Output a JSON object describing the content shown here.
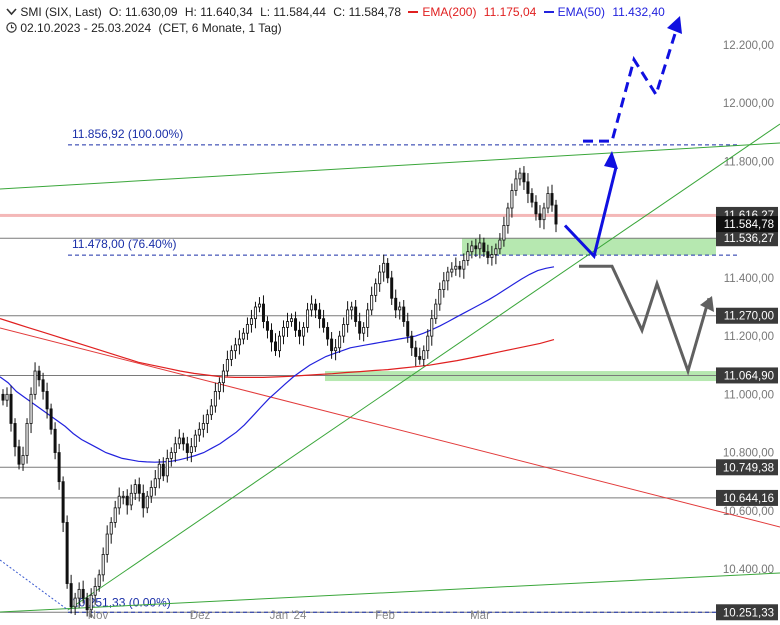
{
  "header": {
    "symbol": "SMI (SIX, Last)",
    "open": "O: 11.630,09",
    "high": "H: 11.640,34",
    "low": "L: 11.584,44",
    "close": "C: 11.584,78",
    "ema200_label": "EMA(200)",
    "ema200_value": "11.175,04",
    "ema50_label": "EMA(50)",
    "ema50_value": "11.432,40",
    "range": "02.10.2023 - 25.03.2024",
    "info": "(CET, 6 Monate, 1 Tag)"
  },
  "colors": {
    "ema200": "#e02020",
    "ema50": "#2222dd",
    "fib": "#1a2fa8",
    "trend_green": "#3aa63a",
    "zone": "#b6e8b0",
    "forecast_up": "#1010e0",
    "forecast_down": "#606060",
    "candle": "#111111",
    "marker_bg": "#3a3a3a",
    "last_price_bg": "#111111"
  },
  "chart_data": {
    "type": "candlestick",
    "x_labels": [
      "Nov",
      "Dez",
      "Jan '24",
      "Feb",
      "Mär"
    ],
    "y_ticks": [
      10400,
      10600,
      10800,
      11000,
      11200,
      11400,
      11600,
      11800,
      12000,
      12200
    ],
    "y_tick_labels": [
      "10.400,00",
      "10.600,00",
      "10.800,00",
      "11.000,00",
      "11.200,00",
      "11.400,00",
      "11.600,00",
      "11.800,00",
      "12.000,00",
      "12.200,00"
    ],
    "ylim": [
      10220,
      12420
    ],
    "closes": [
      10980,
      11000,
      10900,
      10820,
      10760,
      10790,
      10900,
      11000,
      11080,
      11050,
      11010,
      10950,
      10880,
      10800,
      10700,
      10560,
      10350,
      10270,
      10300,
      10330,
      10300,
      10260,
      10310,
      10340,
      10380,
      10450,
      10520,
      10560,
      10610,
      10650,
      10650,
      10620,
      10660,
      10690,
      10660,
      10610,
      10650,
      10680,
      10710,
      10760,
      10720,
      10780,
      10800,
      10830,
      10850,
      10830,
      10800,
      10820,
      10860,
      10880,
      10900,
      10930,
      10960,
      11010,
      11040,
      11080,
      11120,
      11150,
      11170,
      11190,
      11210,
      11240,
      11260,
      11300,
      11310,
      11250,
      11220,
      11180,
      11150,
      11200,
      11230,
      11250,
      11260,
      11220,
      11200,
      11230,
      11290,
      11310,
      11290,
      11260,
      11230,
      11190,
      11150,
      11160,
      11200,
      11240,
      11290,
      11300,
      11250,
      11210,
      11230,
      11290,
      11340,
      11380,
      11420,
      11450,
      11400,
      11330,
      11290,
      11300,
      11250,
      11200,
      11160,
      11130,
      11120,
      11150,
      11200,
      11260,
      11310,
      11360,
      11390,
      11420,
      11430,
      11440,
      11430,
      11460,
      11490,
      11510,
      11500,
      11520,
      11490,
      11470,
      11480,
      11500,
      11530,
      11580,
      11640,
      11700,
      11740,
      11760,
      11730,
      11690,
      11660,
      11620,
      11600,
      11640,
      11690,
      11650,
      11585
    ],
    "ema50": [
      11060,
      11040,
      11010,
      10990,
      10970,
      10950,
      10930,
      10910,
      10890,
      10865,
      10845,
      10830,
      10815,
      10800,
      10790,
      10780,
      10775,
      10770,
      10768,
      10767,
      10768,
      10770,
      10775,
      10782,
      10790,
      10800,
      10815,
      10830,
      10850,
      10870,
      10895,
      10925,
      10955,
      10985,
      11010,
      11035,
      11060,
      11080,
      11100,
      11115,
      11130,
      11140,
      11150,
      11160,
      11165,
      11170,
      11175,
      11180,
      11185,
      11190,
      11195,
      11200,
      11210,
      11222,
      11235,
      11250,
      11265,
      11280,
      11295,
      11310,
      11325,
      11342,
      11360,
      11378,
      11396,
      11412,
      11425,
      11433,
      11438
    ],
    "ema200": [
      11260,
      11245,
      11230,
      11215,
      11200,
      11185,
      11170,
      11155,
      11140,
      11125,
      11110,
      11100,
      11090,
      11080,
      11072,
      11066,
      11060,
      11058,
      11058,
      11058,
      11060,
      11062,
      11065,
      11068,
      11071,
      11075,
      11078,
      11082,
      11085,
      11090,
      11095,
      11100,
      11108,
      11116,
      11125,
      11135,
      11145,
      11155,
      11165,
      11175,
      11188
    ],
    "levels": [
      {
        "label": "11.616,27",
        "value": 11616.27
      },
      {
        "label": "11.536,27",
        "value": 11536.27
      },
      {
        "label": "11.270,00",
        "value": 11270.0
      },
      {
        "label": "11.064,90",
        "value": 11064.9
      },
      {
        "label": "10.749,38",
        "value": 10749.38
      },
      {
        "label": "10.644,16",
        "value": 10644.16
      },
      {
        "label": "10.251,33",
        "value": 10251.33
      }
    ],
    "last_price": {
      "label": "11.584,78",
      "value": 11584.78
    },
    "fib_levels": [
      {
        "label": "11.856,92 (100.00%)",
        "value": 11856.92
      },
      {
        "label": "11.478,00 (76.40%)",
        "value": 11478.0
      },
      {
        "label": "10.251,33 (0.00%)",
        "value": 10251.33
      }
    ],
    "zones": [
      {
        "from": 11478,
        "to": 11536.27
      },
      {
        "from": 11050,
        "to": 11080
      }
    ],
    "forecast_up": [
      11580,
      11475,
      11780,
      11870,
      12150,
      12030,
      12290
    ],
    "forecast_down": [
      11440,
      11440,
      11220,
      11380,
      11080,
      11330
    ]
  }
}
